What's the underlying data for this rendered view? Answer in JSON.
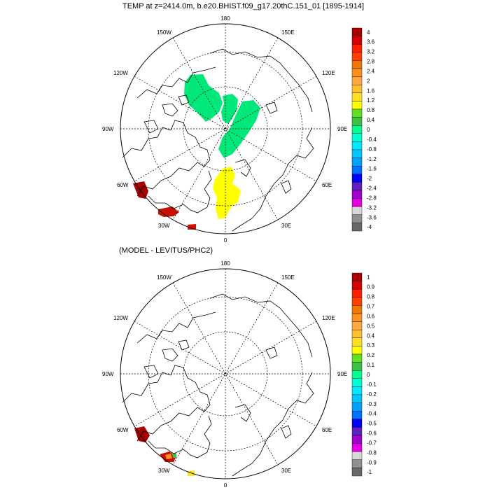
{
  "panels": [
    {
      "title": "TEMP at z=2414.0m, b.e20.BHIST.f09_g17.20thC.151_01 [1895-1914]",
      "lon_labels": {
        "top": "180",
        "bottom": "0",
        "left": "90W",
        "right": "90E",
        "tl1": "150W",
        "tl2": "120W",
        "tr1": "150E",
        "tr2": "120E",
        "bl1": "60W",
        "bl2": "30W",
        "br1": "60E",
        "br2": "30E"
      },
      "colorbar": {
        "labels": [
          "4",
          "3.6",
          "3.2",
          "2.8",
          "2.4",
          "2",
          "1.6",
          "1.2",
          "0.8",
          "0.4",
          "0",
          "-0.4",
          "-0.8",
          "-1.2",
          "-1.6",
          "-2",
          "-2.4",
          "-2.8",
          "-3.2",
          "-3.6",
          "-4"
        ]
      }
    },
    {
      "title": "(MODEL - LEVITUS/PHC2)",
      "lon_labels": {
        "top": "180",
        "bottom": "0",
        "left": "90W",
        "right": "90E",
        "tl1": "150W",
        "tl2": "120W",
        "tr1": "150E",
        "tr2": "120E",
        "bl1": "60W",
        "bl2": "30W",
        "br1": "60E",
        "br2": "30E"
      },
      "colorbar": {
        "labels": [
          "1",
          "0.9",
          "0.8",
          "0.7",
          "0.6",
          "0.5",
          "0.4",
          "0.3",
          "0.2",
          "0.1",
          "0",
          "-0.1",
          "-0.2",
          "-0.3",
          "-0.4",
          "-0.5",
          "-0.6",
          "-0.7",
          "-0.8",
          "-0.9",
          "-1"
        ]
      }
    }
  ],
  "colorbar_colors": [
    "#a80000",
    "#d20000",
    "#ff2000",
    "#ff4000",
    "#f07800",
    "#ff9020",
    "#ffa840",
    "#ffc030",
    "#ffe020",
    "#ffff00",
    "#60e020",
    "#40c040",
    "#00ff90",
    "#00ffd0",
    "#00e8ff",
    "#00c8ff",
    "#00a0ff",
    "#0070ff",
    "#0000ff",
    "#6020c0",
    "#a000d0",
    "#e000e0",
    "#d8d8d8",
    "#909090",
    "#686868"
  ],
  "region_colors": {
    "green": "#00e87a",
    "yellow": "#ffff00",
    "darkred": "#a80000",
    "red": "#d21000"
  }
}
